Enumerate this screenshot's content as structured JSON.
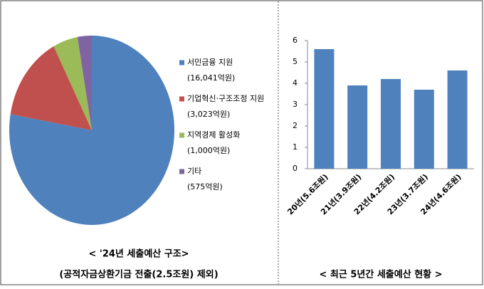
{
  "chart_data": [
    {
      "type": "pie",
      "title": "< '24년 세출예산 구조>",
      "subtitle": "(공적자금상환기금 전출(2.5조원) 제외)",
      "categories": [
        "서민금융 지원",
        "기업혁신·구조조정 지원",
        "지역경제 활성화",
        "기타"
      ],
      "values": [
        16041,
        3023,
        1000,
        575
      ],
      "value_labels": [
        "(16,041억원)",
        "(3,023억원)",
        "(1,000억원)",
        "(575억원)"
      ],
      "colors": [
        "#4f81bd",
        "#c0504d",
        "#9bbb59",
        "#8064a2"
      ]
    },
    {
      "type": "bar",
      "title": "< 최근 5년간 세출예산 현황 >",
      "categories": [
        "20년(5.6조원)",
        "21년(3.9조원)",
        "22년(4.2조원)",
        "23년(3.7조원)",
        "24년(4.6조원)"
      ],
      "values": [
        5.6,
        3.9,
        4.2,
        3.7,
        4.6
      ],
      "color": "#4f81bd",
      "ylim": [
        0,
        6
      ],
      "yticks": [
        0,
        1,
        2,
        3,
        4,
        5,
        6
      ]
    }
  ]
}
